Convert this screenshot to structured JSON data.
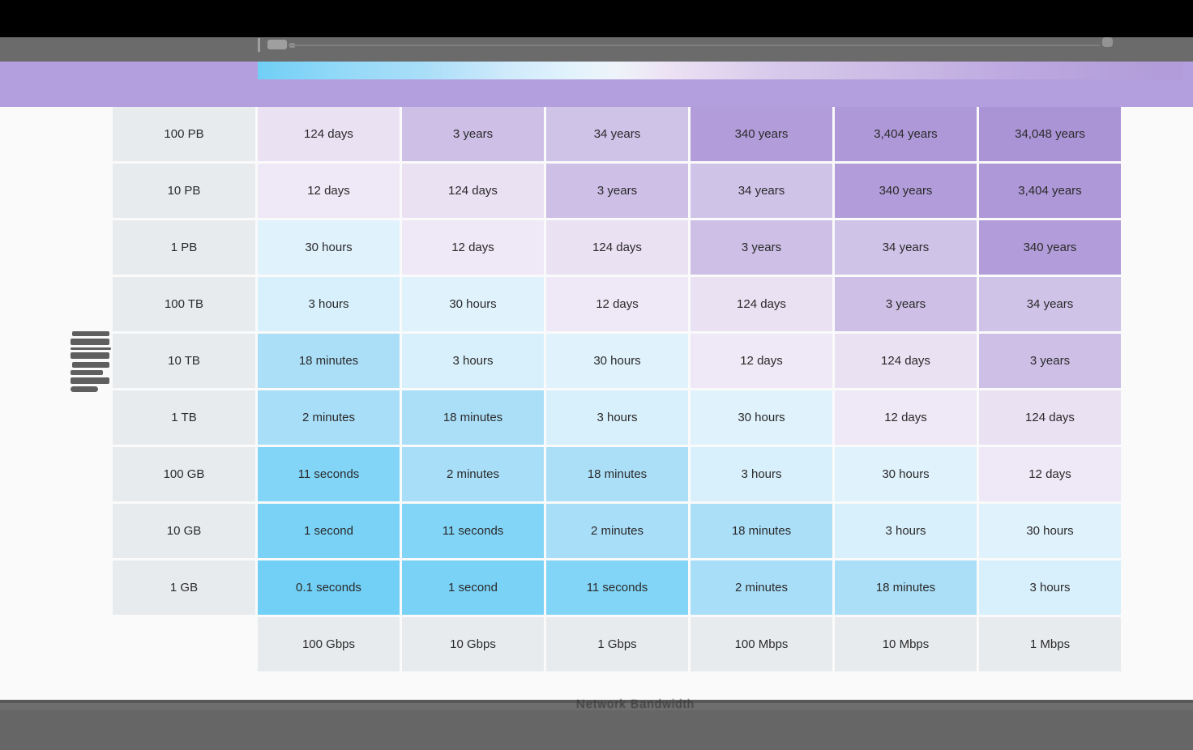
{
  "chrome": {
    "top_bar_color": "#000000",
    "toolbar_color": "#6b6b6b",
    "icons": [
      "toolbar-left-glyphs-icon",
      "toolbar-divider-line",
      "toolbar-right-icon"
    ]
  },
  "legend": {
    "band_color": "#b39fde",
    "gradient_stops": [
      "#70cff6 0%",
      "#93d9f8 9%",
      "#a9def8 18%",
      "#cfeafb 27%",
      "#e2f3fc 34%",
      "#eef3f9 39%",
      "#ece3f4 44%",
      "#d7c9eb 56%",
      "#cbbae5 69%",
      "#bda8e0 82%",
      "#b29dda 97%"
    ]
  },
  "chart_data": {
    "type": "heatmap",
    "xlabel": "Network Bandwidth",
    "label_bg": "#e8ebee",
    "text_color": "#2a2a2a",
    "row_labels": [
      "100 PB",
      "10 PB",
      "1 PB",
      "100 TB",
      "10 TB",
      "1 TB",
      "100 GB",
      "10 GB",
      "1 GB"
    ],
    "column_labels": [
      "100 Gbps",
      "10 Gbps",
      "1 Gbps",
      "100 Mbps",
      "10 Mbps",
      "1 Mbps"
    ],
    "rows": [
      {
        "label": "100 PB",
        "values": [
          "124 days",
          "3 years",
          "34 years",
          "340 years",
          "3,404 years",
          "34,048 years"
        ]
      },
      {
        "label": "10 PB",
        "values": [
          "12 days",
          "124 days",
          "3 years",
          "34 years",
          "340 years",
          "3,404 years"
        ]
      },
      {
        "label": "1 PB",
        "values": [
          "30 hours",
          "12 days",
          "124 days",
          "3 years",
          "34 years",
          "340 years"
        ]
      },
      {
        "label": "100 TB",
        "values": [
          "3 hours",
          "30 hours",
          "12 days",
          "124 days",
          "3 years",
          "34 years"
        ]
      },
      {
        "label": "10 TB",
        "values": [
          "18 minutes",
          "3 hours",
          "30 hours",
          "12 days",
          "124 days",
          "3 years"
        ]
      },
      {
        "label": "1 TB",
        "values": [
          "2 minutes",
          "18 minutes",
          "3 hours",
          "30 hours",
          "12 days",
          "124 days"
        ]
      },
      {
        "label": "100 GB",
        "values": [
          "11 seconds",
          "2 minutes",
          "18 minutes",
          "3 hours",
          "30 hours",
          "12 days"
        ]
      },
      {
        "label": "10 GB",
        "values": [
          "1 second",
          "11 seconds",
          "2 minutes",
          "18 minutes",
          "3 hours",
          "30 hours"
        ]
      },
      {
        "label": "1 GB",
        "values": [
          "0.1 seconds",
          "1 second",
          "11 seconds",
          "2 minutes",
          "18 minutes",
          "3 hours"
        ]
      }
    ],
    "value_colors": {
      "0.1 seconds": "#72d0f6",
      "1 second": "#7ad2f7",
      "11 seconds": "#82d5f7",
      "2 minutes": "#a9def8",
      "18 minutes": "#abdff8",
      "3 hours": "#d8f0fb",
      "30 hours": "#e0f2fc",
      "12 days": "#efe8f6",
      "124 days": "#eae1f3",
      "3 years": "#cdbfe6",
      "34 years": "#cfc3e8",
      "340 years": "#b29dda",
      "3,404 years": "#ae98d8",
      "34,048 years": "#ab94d6"
    }
  }
}
